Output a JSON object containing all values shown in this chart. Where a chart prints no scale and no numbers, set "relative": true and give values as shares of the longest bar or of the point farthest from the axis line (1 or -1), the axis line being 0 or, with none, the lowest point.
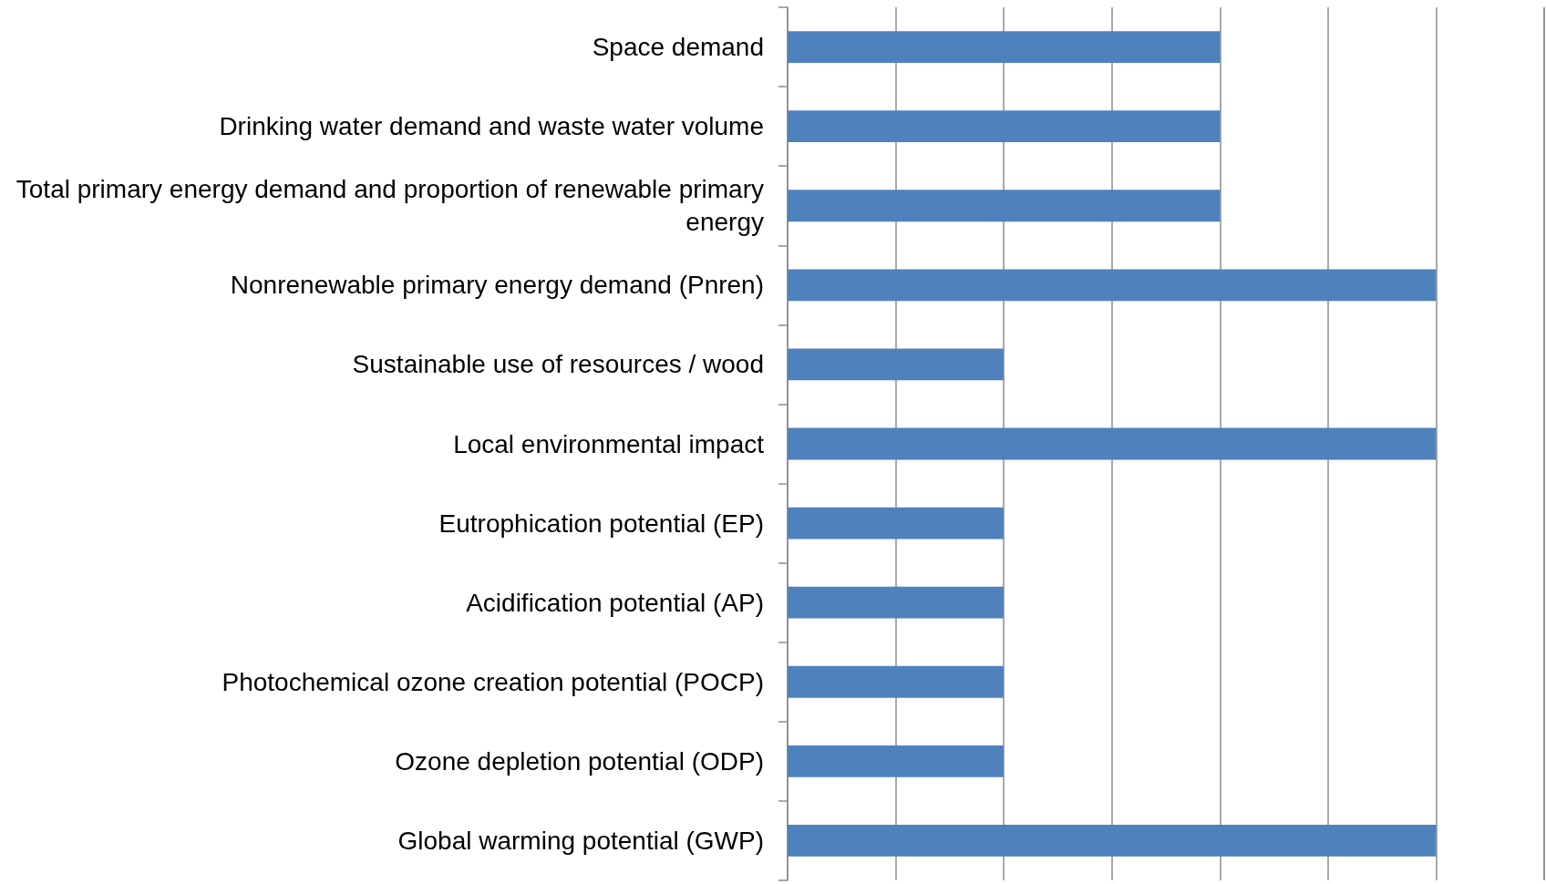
{
  "chart_data": {
    "type": "bar",
    "orientation": "horizontal",
    "relative": true,
    "grid": "x",
    "color": "#4f81bd",
    "categories": [
      "Space demand",
      "Drinking water demand and waste water volume",
      "Total primary energy demand and proportion of renewable primary energy",
      "Nonrenewable primary energy demand (Pnren)",
      "Sustainable use of resources / wood",
      "Local environmental impact",
      "Eutrophication potential (EP)",
      "Acidification potential (AP)",
      "Photochemical ozone creation potential (POCP)",
      "Ozone depletion potential (ODP)",
      "Global warming potential (GWP)"
    ],
    "values": [
      0.667,
      0.667,
      0.667,
      1,
      0.333,
      1,
      0.333,
      0.333,
      0.333,
      0.333,
      1
    ]
  }
}
